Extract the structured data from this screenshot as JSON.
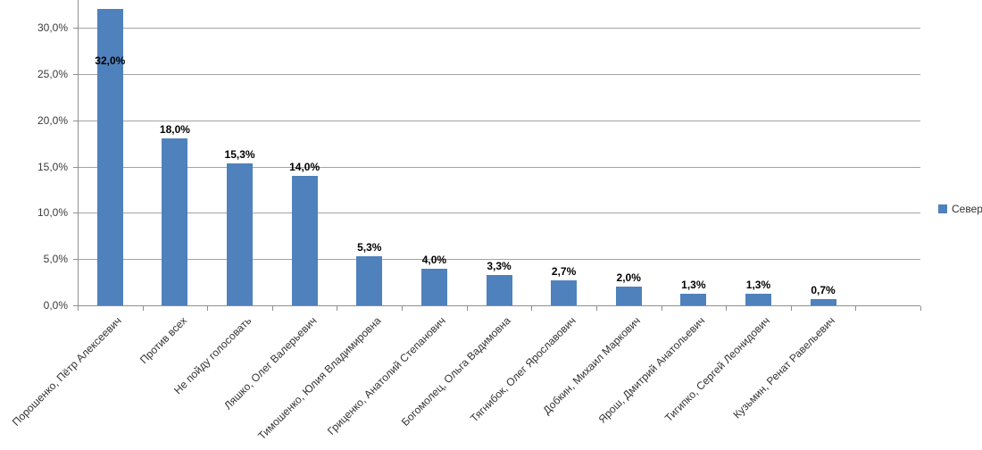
{
  "chart_data": {
    "type": "bar",
    "title": "",
    "xlabel": "",
    "ylabel": "",
    "series_name": "Север",
    "categories": [
      "Порошенко, Пётр Алексеевич",
      "Против всех",
      "Не пойду голосовать",
      "Ляшко, Олег Валерьевич",
      "Тимошенко, Юлия Владимировна",
      "Гриценко, Анатолий Степанович",
      "Богомолец, Ольга Вадимовна",
      "Тягнибок, Олег Ярославович",
      "Добкин, Михаил Маркович",
      "Ярош, Дмитрий Анатольевич",
      "Тигипко, Сергей Леонидович",
      "Кузьмин, Ренат Равельевич"
    ],
    "values": [
      32.0,
      18.0,
      15.3,
      14.0,
      5.3,
      4.0,
      3.3,
      2.7,
      2.0,
      1.3,
      1.3,
      0.7
    ],
    "value_labels": [
      "32,0%",
      "18,0%",
      "15,3%",
      "14,0%",
      "5,3%",
      "4,0%",
      "3,3%",
      "2,7%",
      "2,0%",
      "1,3%",
      "1,3%",
      "0,7%"
    ],
    "y_tick_values": [
      0,
      5,
      10,
      15,
      20,
      25,
      30
    ],
    "y_tick_labels": [
      "0,0%",
      "5,0%",
      "10,0%",
      "15,0%",
      "20,0%",
      "25,0%",
      "30,0%"
    ],
    "ylim": [
      0,
      33
    ],
    "empty_trailing_slots": 1,
    "grid": true,
    "legend_position": "right",
    "decimal_separator": ",",
    "colors": {
      "bar": "#4f81bd",
      "axis": "#8f8f8f",
      "gridline": "#a3a3a3",
      "data_label": "#000000",
      "tick_label": "#3b3b3b"
    }
  }
}
